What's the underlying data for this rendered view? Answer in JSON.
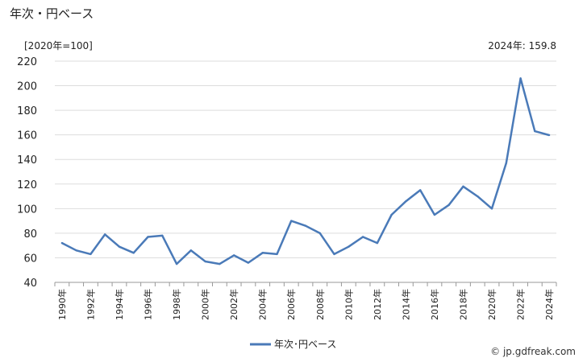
{
  "title": "年次・円ベース",
  "unit_label": "[2020年=100]",
  "latest_label": "2024年: 159.8",
  "footer": "© jp.gdfreak.com",
  "colors": {
    "line": "#4a7ab8",
    "grid": "#dddddd",
    "axis": "#999999"
  },
  "chart_data": {
    "type": "line",
    "title": "",
    "xlabel": "",
    "ylabel": "",
    "ylim": [
      40,
      220
    ],
    "yticks": [
      40,
      60,
      80,
      100,
      120,
      140,
      160,
      180,
      200,
      220
    ],
    "x": [
      1990,
      1991,
      1992,
      1993,
      1994,
      1995,
      1996,
      1997,
      1998,
      1999,
      2000,
      2001,
      2002,
      2003,
      2004,
      2005,
      2006,
      2007,
      2008,
      2009,
      2010,
      2011,
      2012,
      2013,
      2014,
      2015,
      2016,
      2017,
      2018,
      2019,
      2020,
      2021,
      2022,
      2023,
      2024
    ],
    "xtick_labels": [
      "1990年",
      "1992年",
      "1994年",
      "1996年",
      "1998年",
      "2000年",
      "2002年",
      "2004年",
      "2006年",
      "2008年",
      "2010年",
      "2012年",
      "2014年",
      "2016年",
      "2018年",
      "2020年",
      "2022年",
      "2024年"
    ],
    "grid": true,
    "legend": "bottom",
    "series": [
      {
        "name": "年次･円ベース",
        "values": [
          72,
          66,
          63,
          79,
          69,
          64,
          77,
          78,
          55,
          66,
          57,
          55,
          62,
          56,
          64,
          63,
          90,
          86,
          80,
          63,
          69,
          77,
          72,
          95,
          106,
          115,
          95,
          103,
          118,
          110,
          100,
          137,
          206,
          163,
          159.8
        ]
      }
    ]
  }
}
